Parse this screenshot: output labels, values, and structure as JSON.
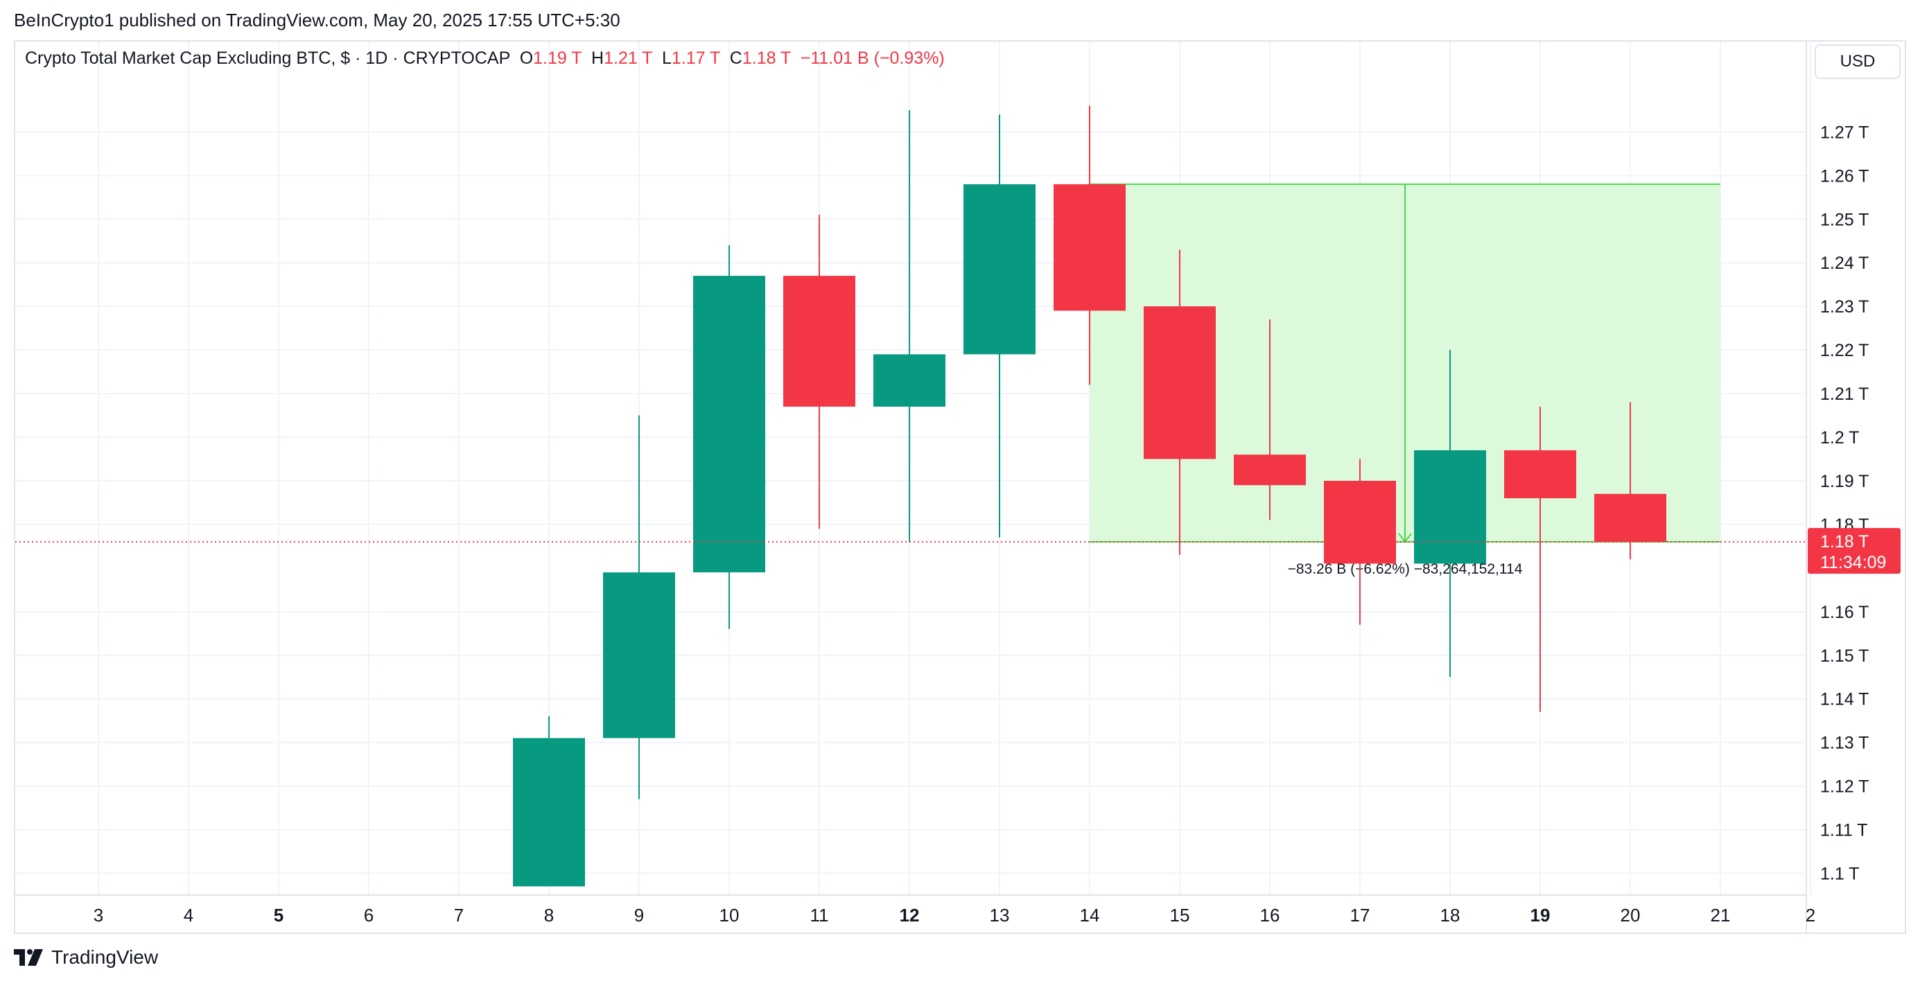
{
  "publish_line": "BeInCrypto1 published on TradingView.com, May 20, 2025 17:55 UTC+5:30",
  "legend": {
    "title": "Crypto Total Market Cap Excluding BTC, $ · 1D · CRYPTOCAP",
    "o_label": "O",
    "o_value": "1.19 T",
    "h_label": "H",
    "h_value": "1.21 T",
    "l_label": "L",
    "l_value": "1.17 T",
    "c_label": "C",
    "c_value": "1.18 T",
    "change": "−11.01 B (−0.93%)"
  },
  "currency": "USD",
  "price_badge": {
    "price": "1.18 T",
    "countdown": "11:34:09"
  },
  "measure_label": "−83.26 B (−6.62%) −83,264,152,114",
  "footer_brand": "TradingView",
  "colors": {
    "up": "#089981",
    "down": "#f23645",
    "range_fill": "#dcf9dc",
    "range_line": "#4cd44c",
    "grid": "#f0f3fa"
  },
  "chart_data": {
    "type": "candlestick",
    "x_tick_labels": [
      "3",
      "4",
      "5",
      "6",
      "7",
      "8",
      "9",
      "10",
      "11",
      "12",
      "13",
      "14",
      "15",
      "16",
      "17",
      "18",
      "19",
      "20",
      "21",
      "2"
    ],
    "bold_x_ticks": [
      "5",
      "12",
      "19"
    ],
    "y_tick_labels": [
      "1.27 T",
      "1.26 T",
      "1.25 T",
      "1.24 T",
      "1.23 T",
      "1.22 T",
      "1.21 T",
      "1.2 T",
      "1.19 T",
      "1.18 T",
      "1.16 T",
      "1.15 T",
      "1.14 T",
      "1.13 T",
      "1.12 T",
      "1.11 T",
      "1.1 T"
    ],
    "y_ticks": [
      1.27,
      1.26,
      1.25,
      1.24,
      1.23,
      1.22,
      1.21,
      1.2,
      1.19,
      1.18,
      1.16,
      1.15,
      1.14,
      1.13,
      1.12,
      1.11,
      1.1
    ],
    "ylim": [
      1.095,
      1.2815
    ],
    "x_range": [
      2.5,
      22
    ],
    "candles": [
      {
        "day": 8,
        "open": 1.097,
        "high": 1.136,
        "low": 1.097,
        "close": 1.131
      },
      {
        "day": 9,
        "open": 1.131,
        "high": 1.205,
        "low": 1.117,
        "close": 1.169
      },
      {
        "day": 10,
        "open": 1.169,
        "high": 1.244,
        "low": 1.156,
        "close": 1.237
      },
      {
        "day": 11,
        "open": 1.237,
        "high": 1.251,
        "low": 1.179,
        "close": 1.207
      },
      {
        "day": 12,
        "open": 1.207,
        "high": 1.275,
        "low": 1.176,
        "close": 1.219
      },
      {
        "day": 13,
        "open": 1.219,
        "high": 1.274,
        "low": 1.177,
        "close": 1.258
      },
      {
        "day": 14,
        "open": 1.258,
        "high": 1.276,
        "low": 1.212,
        "close": 1.229
      },
      {
        "day": 15,
        "open": 1.23,
        "high": 1.243,
        "low": 1.173,
        "close": 1.195
      },
      {
        "day": 16,
        "open": 1.196,
        "high": 1.227,
        "low": 1.181,
        "close": 1.189
      },
      {
        "day": 17,
        "open": 1.19,
        "high": 1.195,
        "low": 1.157,
        "close": 1.171
      },
      {
        "day": 18,
        "open": 1.171,
        "high": 1.22,
        "low": 1.145,
        "close": 1.197
      },
      {
        "day": 19,
        "open": 1.197,
        "high": 1.207,
        "low": 1.137,
        "close": 1.186
      },
      {
        "day": 20,
        "open": 1.187,
        "high": 1.208,
        "low": 1.172,
        "close": 1.176
      }
    ],
    "last_price": 1.176,
    "range_measure": {
      "from_day": 14,
      "to_day": 21,
      "top": 1.258,
      "bottom": 1.176,
      "arrow_day": 17.5
    }
  }
}
